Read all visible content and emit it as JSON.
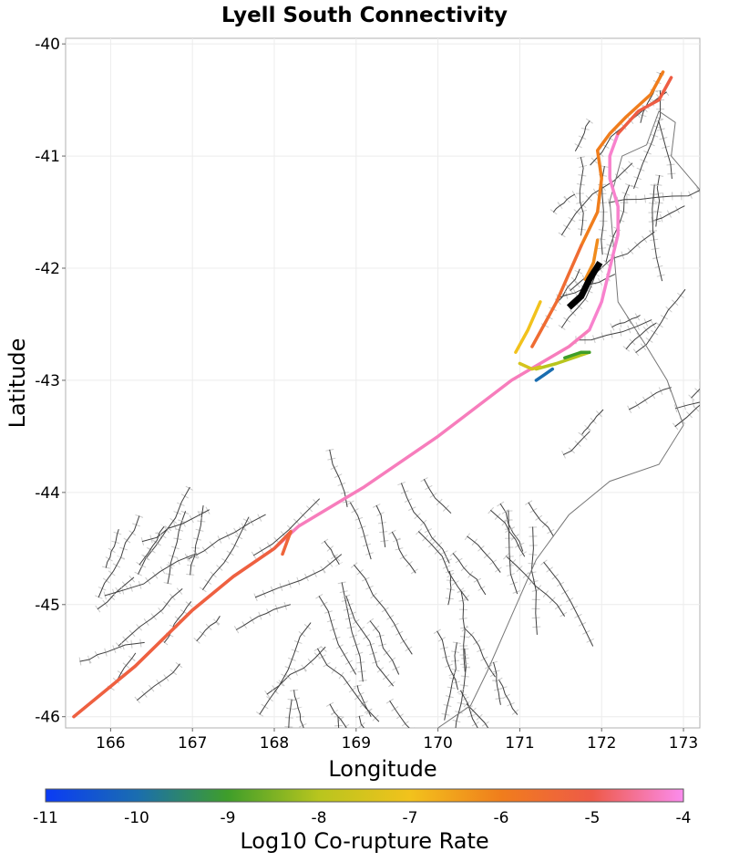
{
  "chart_data": {
    "type": "map",
    "title": "Lyell South Connectivity",
    "xlabel": "Longitude",
    "ylabel": "Latitude",
    "xlim": [
      165.45,
      173.2
    ],
    "ylim": [
      -46.1,
      -39.95
    ],
    "x_ticks": [
      166,
      167,
      168,
      169,
      170,
      171,
      172,
      173
    ],
    "y_ticks": [
      -40,
      -41,
      -42,
      -43,
      -44,
      -45,
      -46
    ],
    "grid": true,
    "colorbar": {
      "label": "Log10 Co-rupture Rate",
      "min": -11,
      "max": -4,
      "ticks": [
        -11,
        -10,
        -9,
        -8,
        -7,
        -6,
        -5,
        -4
      ],
      "stops": [
        {
          "value": -11,
          "color": "#0b3bf5"
        },
        {
          "value": -10,
          "color": "#1a6db0"
        },
        {
          "value": -9,
          "color": "#3f9e2a"
        },
        {
          "value": -8,
          "color": "#b8c51e"
        },
        {
          "value": -7,
          "color": "#f2c21c"
        },
        {
          "value": -6,
          "color": "#f07d1c"
        },
        {
          "value": -5,
          "color": "#ee5a48"
        },
        {
          "value": -4,
          "color": "#fb8cee"
        }
      ]
    },
    "source_fault": {
      "name": "Lyell South",
      "color": "#000000",
      "path": [
        [
          171.6,
          -42.35
        ],
        [
          171.75,
          -42.25
        ],
        [
          171.85,
          -42.1
        ],
        [
          171.98,
          -41.95
        ]
      ]
    },
    "colored_sections": [
      {
        "log_rate": -4.3,
        "path": [
          [
            165.55,
            -46.0
          ],
          [
            166.3,
            -45.55
          ],
          [
            167.0,
            -45.05
          ],
          [
            167.5,
            -44.75
          ],
          [
            168.0,
            -44.5
          ],
          [
            168.3,
            -44.3
          ],
          [
            169.1,
            -43.95
          ],
          [
            170.0,
            -43.5
          ],
          [
            170.9,
            -43.0
          ],
          [
            171.6,
            -42.7
          ],
          [
            171.85,
            -42.55
          ]
        ]
      },
      {
        "log_rate": -5.2,
        "path": [
          [
            165.55,
            -46.0
          ],
          [
            166.3,
            -45.55
          ],
          [
            167.0,
            -45.05
          ],
          [
            167.5,
            -44.75
          ],
          [
            168.0,
            -44.5
          ],
          [
            168.2,
            -44.35
          ]
        ]
      },
      {
        "log_rate": -5.3,
        "path": [
          [
            168.2,
            -44.35
          ],
          [
            168.15,
            -44.45
          ],
          [
            168.1,
            -44.55
          ]
        ]
      },
      {
        "log_rate": -4.2,
        "path": [
          [
            171.85,
            -42.55
          ],
          [
            172.0,
            -42.3
          ],
          [
            172.1,
            -42.0
          ],
          [
            172.2,
            -41.7
          ],
          [
            172.2,
            -41.45
          ],
          [
            172.1,
            -41.2
          ],
          [
            172.1,
            -41.0
          ],
          [
            172.2,
            -40.8
          ]
        ]
      },
      {
        "log_rate": -5.1,
        "path": [
          [
            172.2,
            -40.8
          ],
          [
            172.45,
            -40.6
          ],
          [
            172.7,
            -40.5
          ],
          [
            172.85,
            -40.3
          ]
        ]
      },
      {
        "log_rate": -6.0,
        "path": [
          [
            171.75,
            -41.8
          ],
          [
            171.95,
            -41.5
          ],
          [
            172.0,
            -41.2
          ],
          [
            171.95,
            -40.95
          ],
          [
            172.1,
            -40.8
          ],
          [
            172.3,
            -40.65
          ],
          [
            172.6,
            -40.45
          ],
          [
            172.75,
            -40.25
          ]
        ]
      },
      {
        "log_rate": -5.5,
        "path": [
          [
            171.15,
            -42.7
          ],
          [
            171.3,
            -42.5
          ],
          [
            171.45,
            -42.3
          ],
          [
            171.6,
            -42.05
          ],
          [
            171.75,
            -41.8
          ]
        ]
      },
      {
        "log_rate": -7.0,
        "path": [
          [
            170.95,
            -42.75
          ],
          [
            171.1,
            -42.55
          ],
          [
            171.25,
            -42.3
          ]
        ]
      },
      {
        "log_rate": -6.2,
        "path": [
          [
            171.8,
            -42.1
          ],
          [
            171.9,
            -41.95
          ],
          [
            171.95,
            -41.75
          ]
        ]
      },
      {
        "log_rate": -8.0,
        "path": [
          [
            171.2,
            -42.9
          ],
          [
            171.45,
            -42.85
          ],
          [
            171.65,
            -42.8
          ],
          [
            171.85,
            -42.75
          ]
        ]
      },
      {
        "log_rate": -9.0,
        "path": [
          [
            171.55,
            -42.8
          ],
          [
            171.75,
            -42.75
          ],
          [
            171.85,
            -42.75
          ]
        ]
      },
      {
        "log_rate": -10.0,
        "path": [
          [
            171.2,
            -43.0
          ],
          [
            171.3,
            -42.95
          ],
          [
            171.4,
            -42.9
          ]
        ]
      },
      {
        "log_rate": -7.5,
        "path": [
          [
            171.0,
            -42.85
          ],
          [
            171.15,
            -42.9
          ],
          [
            171.25,
            -42.88
          ]
        ]
      }
    ]
  }
}
